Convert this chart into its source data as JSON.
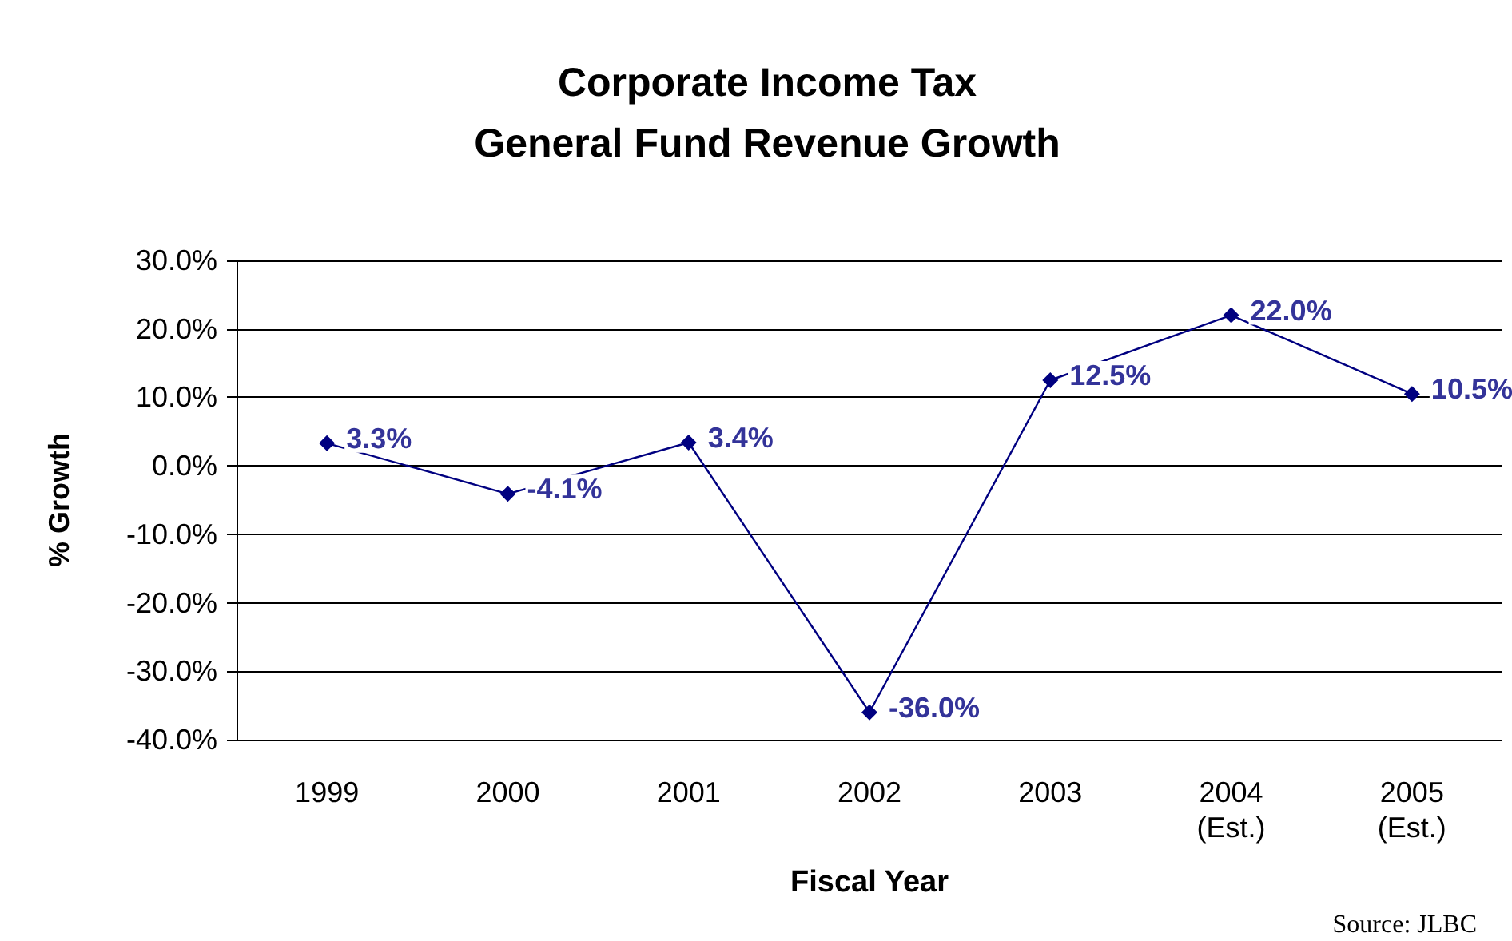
{
  "chart_data": {
    "type": "line",
    "title": "Corporate Income Tax\nGeneral Fund Revenue Growth",
    "xlabel": "Fiscal Year",
    "ylabel": "% Growth",
    "categories": [
      "1999",
      "2000",
      "2001",
      "2002",
      "2003",
      "2004\n(Est.)",
      "2005\n(Est.)"
    ],
    "series": [
      {
        "color": "#000080",
        "values": [
          3.3,
          -4.1,
          3.4,
          -36.0,
          12.5,
          22.0,
          10.5
        ],
        "value_labels": [
          "3.3%",
          "-4.1%",
          "3.4%",
          "-36.0%",
          "12.5%",
          "22.0%",
          "10.5%"
        ]
      }
    ],
    "ylim": [
      -40,
      30
    ],
    "yticks": [
      {
        "value": -40,
        "label": "-40.0%"
      },
      {
        "value": -30,
        "label": "-30.0%"
      },
      {
        "value": -20,
        "label": "-20.0%"
      },
      {
        "value": -10,
        "label": "-10.0%"
      },
      {
        "value": 0,
        "label": "0.0%"
      },
      {
        "value": 10,
        "label": "10.0%"
      },
      {
        "value": 20,
        "label": "20.0%"
      },
      {
        "value": 30,
        "label": "30.0%"
      }
    ],
    "grid": "y",
    "marker": "diamond",
    "line_style": "solid",
    "annotations": [
      "Source: JLBC"
    ]
  }
}
